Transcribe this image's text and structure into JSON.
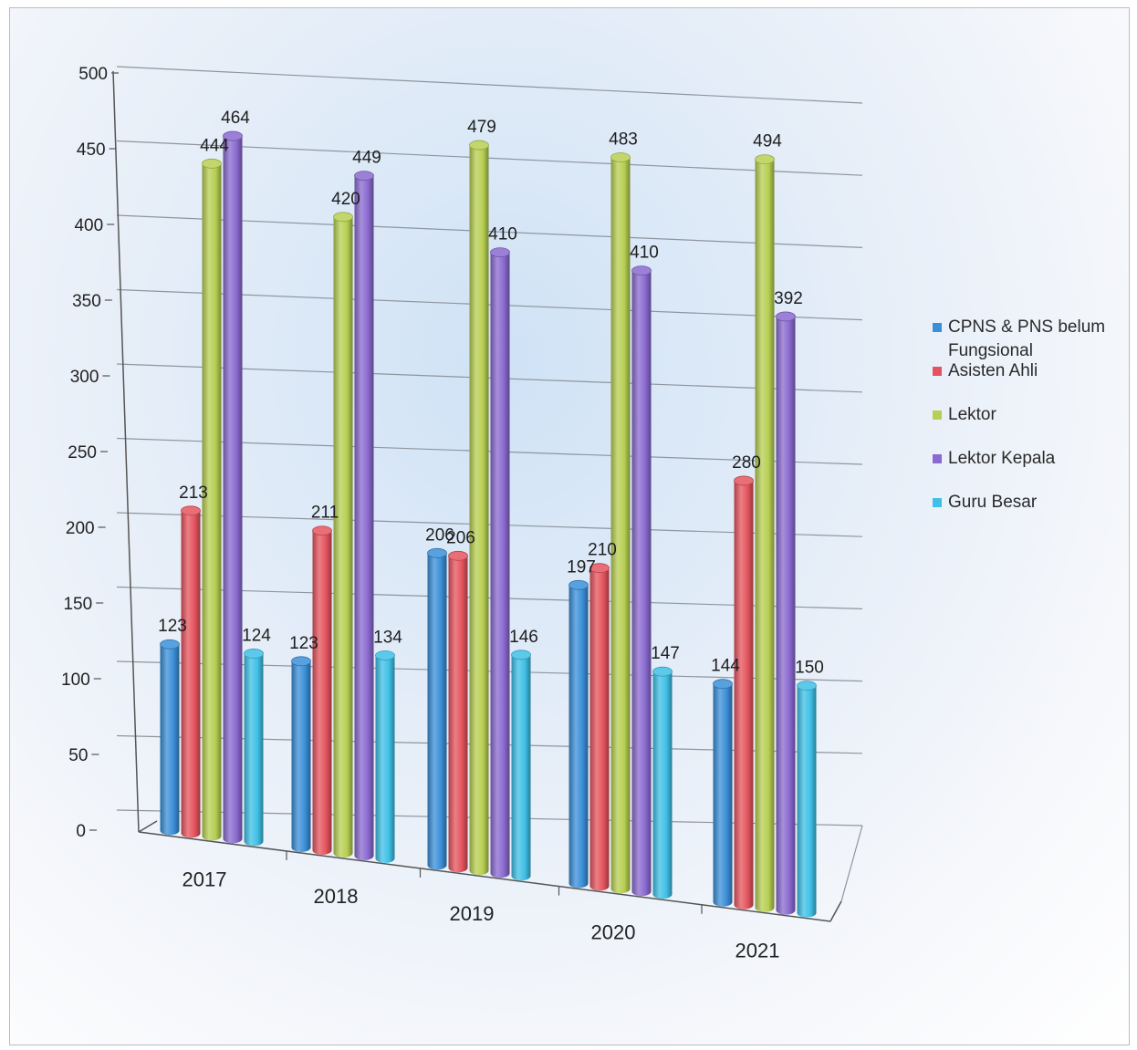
{
  "chart_data": {
    "type": "bar",
    "categories": [
      "2017",
      "2018",
      "2019",
      "2020",
      "2021"
    ],
    "series": [
      {
        "name": "CPNS & PNS belum Fungsional",
        "color": "#3b8fd8",
        "values": [
          123,
          123,
          206,
          197,
          144
        ]
      },
      {
        "name": "Asisten Ahli",
        "color": "#e5545e",
        "values": [
          213,
          211,
          206,
          210,
          280
        ]
      },
      {
        "name": "Lektor",
        "color": "#b7cf52",
        "values": [
          444,
          420,
          479,
          483,
          494
        ]
      },
      {
        "name": "Lektor Kepala",
        "color": "#8a6ad0",
        "values": [
          464,
          449,
          410,
          410,
          392
        ]
      },
      {
        "name": "Guru Besar",
        "color": "#3fc0e6",
        "values": [
          124,
          134,
          146,
          147,
          150
        ]
      }
    ],
    "ylim": [
      0,
      500
    ],
    "yticks": [
      0,
      50,
      100,
      150,
      200,
      250,
      300,
      350,
      400,
      450,
      500
    ],
    "grid": true,
    "legend_position": "right"
  }
}
